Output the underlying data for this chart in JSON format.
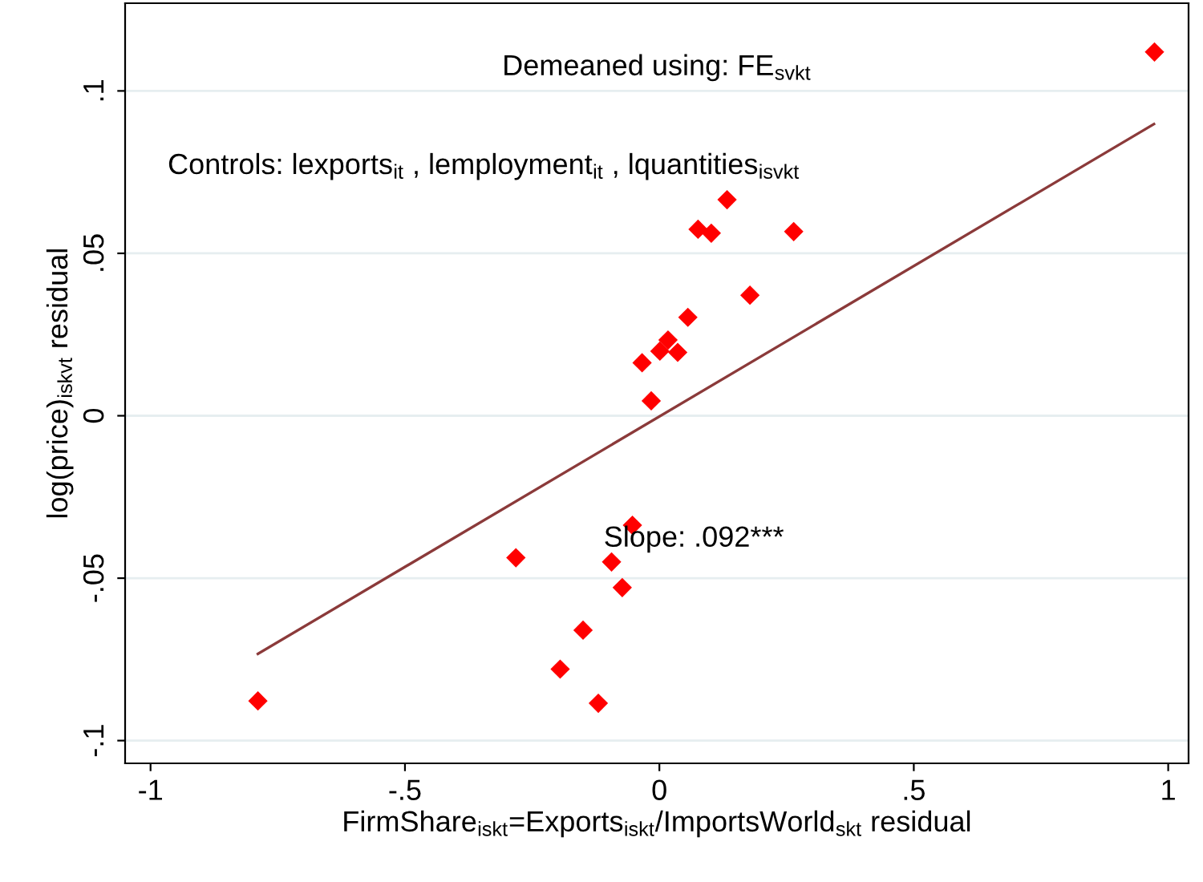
{
  "chart_data": {
    "type": "scatter",
    "xlabel": "FirmShare$_{iskt}$=Exports$_{iskt}$/ImportsWorld$_{skt}$ residual",
    "ylabel": "log(price)$_{iskvt}$ residual",
    "annotations": [
      "Demeaned using: FE$_{svkt}$",
      "Controls: lexports$_{it}$ , lemployment$_{it}$ , lquantities$_{isvkt}$",
      "Slope: .092***"
    ],
    "series": [
      {
        "color": "#ff0000",
        "marker": "diamond",
        "x": [
          0.973,
          0.133,
          0.076,
          0.102,
          0.264,
          0.178,
          0.056,
          0.017,
          0.001,
          0.036,
          -0.034,
          -0.016,
          -0.053,
          -0.282,
          -0.094,
          -0.073,
          -0.15,
          -0.195,
          -0.12,
          -0.789
        ],
        "values": [
          0.112,
          0.0665,
          0.0574,
          0.0562,
          0.0567,
          0.0371,
          0.0303,
          0.0233,
          0.0199,
          0.0195,
          0.0163,
          0.0046,
          -0.0337,
          -0.0437,
          -0.045,
          -0.0529,
          -0.066,
          -0.078,
          -0.0885,
          -0.0878
        ]
      },
      {
        "type": "line",
        "color": "#8b3a3a",
        "x": [
          -0.789,
          0.972
        ],
        "values": [
          -0.0733,
          0.0898
        ]
      }
    ],
    "xlim": [
      -1.05,
      1.04
    ],
    "ylim": [
      -0.107,
      0.127
    ],
    "xticks": [
      {
        "value": -1,
        "label": "-1"
      },
      {
        "value": -0.5,
        "label": "-.5"
      },
      {
        "value": 0,
        "label": "0"
      },
      {
        "value": 0.5,
        "label": ".5"
      },
      {
        "value": 1,
        "label": "1"
      }
    ],
    "yticks": [
      {
        "value": -0.1,
        "label": "-.1"
      },
      {
        "value": -0.05,
        "label": "-.05"
      },
      {
        "value": 0,
        "label": "0"
      },
      {
        "value": 0.05,
        "label": ".05"
      },
      {
        "value": 0.1,
        "label": ".1"
      }
    ],
    "grid": "y"
  }
}
